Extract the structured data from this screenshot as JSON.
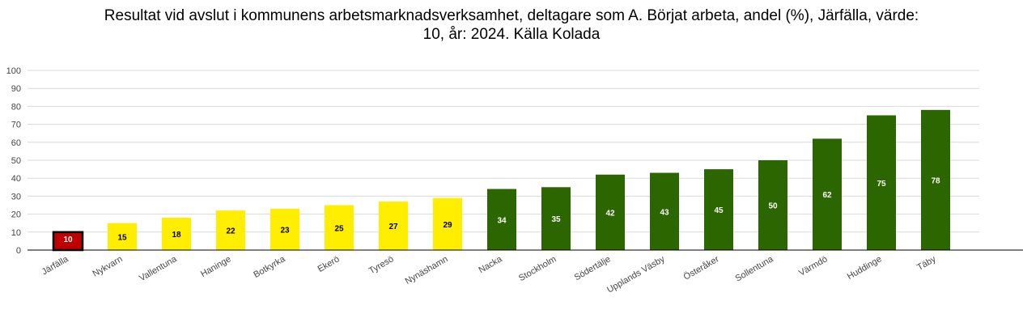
{
  "chart_data": {
    "type": "bar",
    "title_lines": [
      "Resultat vid avslut i kommunens arbetsmarknadsverksamhet, deltagare som A. Börjat arbeta, andel (%), Järfälla, värde:",
      "10, år: 2024. Källa Kolada"
    ],
    "xlabel": "",
    "ylabel": "",
    "ylim": [
      0,
      100
    ],
    "yticks": [
      0,
      10,
      20,
      30,
      40,
      50,
      60,
      70,
      80,
      90,
      100
    ],
    "grid": true,
    "legend": "none",
    "categories": [
      "Järfälla",
      "Nykvarn",
      "Vallentuna",
      "Haninge",
      "Botkyrka",
      "Ekerö",
      "Tyresö",
      "Nynäshamn",
      "Nacka",
      "Stockholm",
      "Södertälje",
      "Upplands Väsby",
      "Österåker",
      "Sollentuna",
      "Värmdö",
      "Huddinge",
      "Täby"
    ],
    "values": [
      10,
      15,
      18,
      22,
      23,
      25,
      27,
      29,
      34,
      35,
      42,
      43,
      45,
      50,
      62,
      75,
      78
    ],
    "labels": [
      "10",
      "15",
      "18",
      "22",
      "23",
      "25",
      "27",
      "29",
      "34",
      "35",
      "42",
      "43",
      "45",
      "50",
      "62",
      "75",
      "78"
    ],
    "colors": [
      "#c00000",
      "#ffee00",
      "#ffee00",
      "#ffee00",
      "#ffee00",
      "#ffee00",
      "#ffee00",
      "#ffee00",
      "#2b6600",
      "#2b6600",
      "#2b6600",
      "#2b6600",
      "#2b6600",
      "#2b6600",
      "#2b6600",
      "#2b6600",
      "#2b6600"
    ],
    "label_colors": [
      "#ffffff",
      "#000000",
      "#000000",
      "#000000",
      "#000000",
      "#000000",
      "#000000",
      "#000000",
      "#ffffff",
      "#ffffff",
      "#ffffff",
      "#ffffff",
      "#ffffff",
      "#ffffff",
      "#ffffff",
      "#ffffff",
      "#ffffff"
    ],
    "highlight_index": 0
  }
}
